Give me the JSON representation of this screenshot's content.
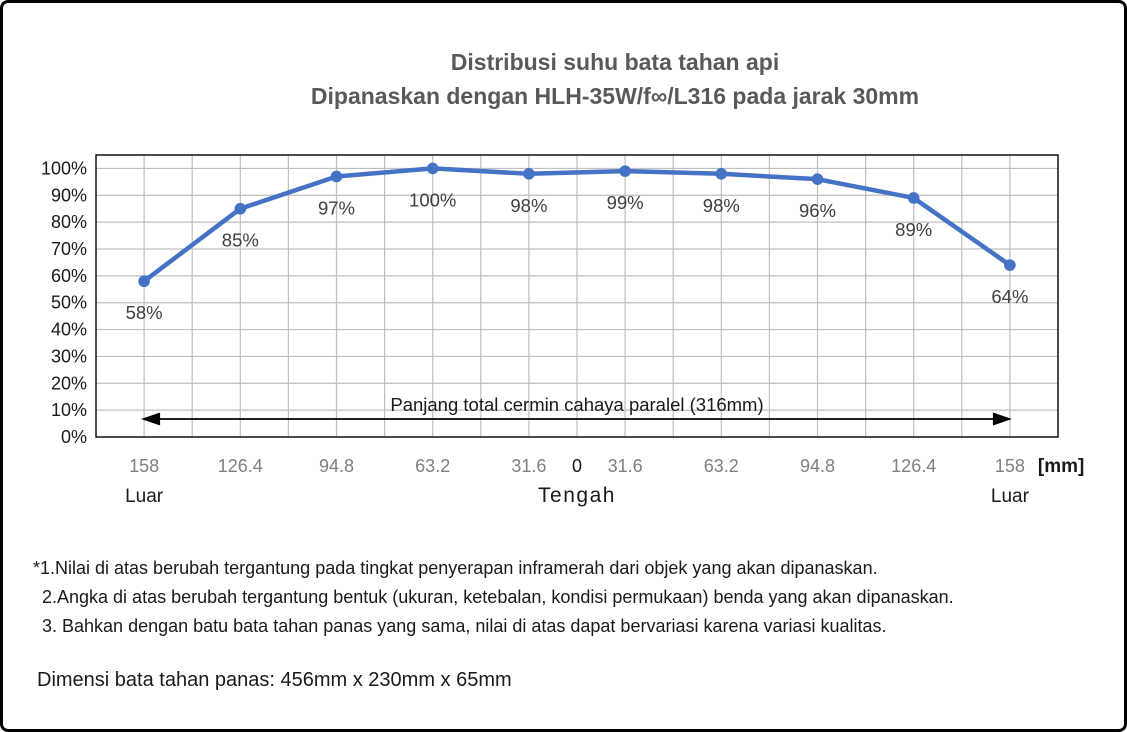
{
  "title": {
    "line1": "Distribusi suhu bata tahan api",
    "line2": "Dipanaskan dengan HLH-35W/f∞/L316 pada jarak 30mm"
  },
  "chart_data": {
    "type": "line",
    "series": [
      {
        "name": "Distribusi suhu (%)",
        "values": [
          58,
          85,
          97,
          100,
          98,
          99,
          98,
          96,
          89,
          64
        ]
      }
    ],
    "point_labels": [
      "58%",
      "85%",
      "97%",
      "100%",
      "98%",
      "99%",
      "98%",
      "96%",
      "89%",
      "64%"
    ],
    "x_grid_divisions": 20,
    "point_grids": [
      1,
      3,
      5,
      7,
      9,
      11,
      13,
      15,
      17,
      19
    ],
    "x_ticks": [
      {
        "grid": 1,
        "label": "158",
        "emph": false
      },
      {
        "grid": 3,
        "label": "126.4",
        "emph": false
      },
      {
        "grid": 5,
        "label": "94.8",
        "emph": false
      },
      {
        "grid": 7,
        "label": "63.2",
        "emph": false
      },
      {
        "grid": 9,
        "label": "31.6",
        "emph": false
      },
      {
        "grid": 10,
        "label": "0",
        "emph": true
      },
      {
        "grid": 11,
        "label": "31.6",
        "emph": false
      },
      {
        "grid": 13,
        "label": "63.2",
        "emph": false
      },
      {
        "grid": 15,
        "label": "94.8",
        "emph": false
      },
      {
        "grid": 17,
        "label": "126.4",
        "emph": false
      },
      {
        "grid": 19,
        "label": "158",
        "emph": false
      }
    ],
    "x_unit": "【mm】",
    "region_labels": [
      {
        "grid": 1,
        "label": "Luar"
      },
      {
        "grid": 10,
        "label": "Tengah"
      },
      {
        "grid": 19,
        "label": "Luar"
      }
    ],
    "y_axis": {
      "min": 0,
      "max": 105,
      "tick_step": 10,
      "tick_suffix": "%",
      "tick_labels": [
        "0%",
        "10%",
        "20%",
        "30%",
        "40%",
        "50%",
        "60%",
        "70%",
        "80%",
        "90%",
        "100%"
      ]
    },
    "annotation": {
      "text": "Panjang total cermin cahaya paralel（316mm）"
    },
    "grid": true,
    "legend": "none",
    "colors": {
      "line": "#4472C4",
      "marker": "#4472C4",
      "gridline": "#BFBFBF",
      "plot_border": "#000000",
      "y_tick_text": "#1a1a1a",
      "x_tick_text": "#7F7F7F",
      "x_tick_emph_text": "#1a1a1a",
      "data_label_text": "#3F3F3F",
      "annotation_text": "#1a1a1a",
      "title_text": "#595959"
    }
  },
  "notes": [
    "*1.Nilai di atas berubah tergantung pada tingkat penyerapan inframerah dari objek yang akan dipanaskan.",
    "2.Angka di atas berubah tergantung bentuk (ukuran, ketebalan, kondisi permukaan) benda yang akan dipanaskan.",
    "3. Bahkan dengan batu bata tahan panas yang sama, nilai di atas dapat bervariasi karena variasi kualitas."
  ],
  "dimension_note": "Dimensi bata tahan panas: 456mm x 230mm x 65mm"
}
